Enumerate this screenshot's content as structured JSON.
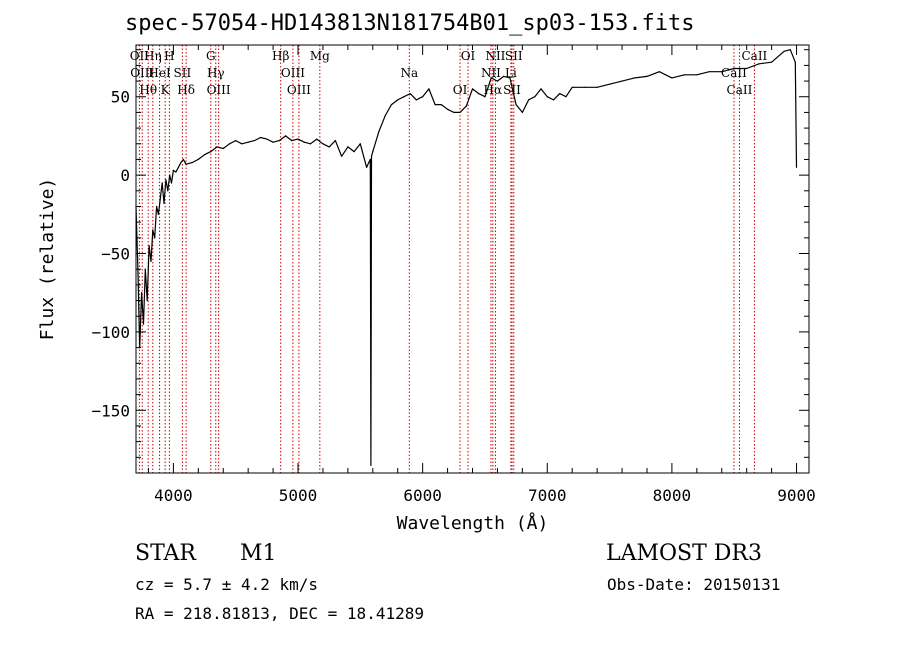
{
  "header": {
    "title": "spec-57054-HD143813N181754B01_sp03-153.fits"
  },
  "footer": {
    "object_class": "STAR",
    "subclass": "M1",
    "survey": "LAMOST DR3",
    "cz": "cz = 5.7 ± 4.2 km/s",
    "obs_date": "Obs-Date: 20150131",
    "coords": "RA = 218.81813, DEC =  18.41289"
  },
  "chart_data": {
    "type": "line",
    "title": "spec-57054-HD143813N181754B01_sp03-153.fits",
    "xlabel": "Wavelength (Å)",
    "ylabel": "Flux (relative)",
    "xlim": [
      3700,
      9100
    ],
    "ylim": [
      -190,
      83
    ],
    "xticks": [
      4000,
      5000,
      6000,
      7000,
      8000,
      9000
    ],
    "yticks": [
      -150,
      -100,
      -50,
      0,
      50
    ],
    "xtick_labels": [
      "4000",
      "5000",
      "6000",
      "7000",
      "8000",
      "9000"
    ],
    "ytick_labels": [
      "−150",
      "−100",
      "−50",
      "0",
      "50"
    ],
    "grid": false,
    "series": [
      {
        "name": "",
        "x": [
          3700,
          3715,
          3730,
          3745,
          3760,
          3775,
          3790,
          3805,
          3820,
          3835,
          3850,
          3865,
          3880,
          3895,
          3910,
          3925,
          3940,
          3955,
          3970,
          3985,
          4000,
          4020,
          4040,
          4060,
          4080,
          4100,
          4150,
          4200,
          4250,
          4300,
          4350,
          4400,
          4450,
          4500,
          4550,
          4600,
          4650,
          4700,
          4750,
          4800,
          4850,
          4900,
          4950,
          5000,
          5050,
          5100,
          5150,
          5200,
          5250,
          5300,
          5350,
          5400,
          5450,
          5500,
          5550,
          5580,
          5585,
          5590,
          5600,
          5650,
          5700,
          5750,
          5800,
          5850,
          5900,
          5950,
          6000,
          6050,
          6100,
          6150,
          6200,
          6250,
          6300,
          6350,
          6400,
          6450,
          6500,
          6550,
          6600,
          6650,
          6700,
          6750,
          6800,
          6850,
          6900,
          6950,
          7000,
          7050,
          7100,
          7150,
          7200,
          7300,
          7400,
          7500,
          7600,
          7700,
          7800,
          7900,
          8000,
          8100,
          8200,
          8300,
          8400,
          8500,
          8600,
          8700,
          8800,
          8900,
          8950,
          8990,
          9000
        ],
        "y": [
          -20,
          -60,
          -110,
          -75,
          -95,
          -60,
          -80,
          -45,
          -55,
          -35,
          -40,
          -20,
          -25,
          -15,
          -5,
          -18,
          -3,
          -10,
          0,
          -5,
          3,
          2,
          5,
          8,
          10,
          7,
          8,
          10,
          13,
          15,
          18,
          17,
          20,
          22,
          20,
          21,
          22,
          24,
          23,
          21,
          22,
          25,
          22,
          23,
          21,
          20,
          23,
          20,
          18,
          22,
          12,
          18,
          15,
          20,
          5,
          10,
          -185,
          12,
          15,
          28,
          38,
          45,
          48,
          50,
          52,
          48,
          50,
          55,
          45,
          45,
          42,
          40,
          40,
          44,
          55,
          52,
          50,
          62,
          60,
          63,
          62,
          45,
          40,
          48,
          50,
          55,
          50,
          48,
          52,
          50,
          56,
          56,
          56,
          58,
          60,
          62,
          63,
          66,
          62,
          64,
          64,
          66,
          66,
          68,
          68,
          71,
          72,
          79,
          80,
          72,
          5
        ]
      }
    ],
    "line_markers": [
      {
        "wavelength": 3727,
        "label": "OII"
      },
      {
        "wavelength": 3750,
        "label": "OIII"
      },
      {
        "wavelength": 3798,
        "label": "Hθ"
      },
      {
        "wavelength": 3835,
        "label": "Hη"
      },
      {
        "wavelength": 3889,
        "label": "HeI"
      },
      {
        "wavelength": 3934,
        "label": "K"
      },
      {
        "wavelength": 3968,
        "label": "H"
      },
      {
        "wavelength": 4072,
        "label": "SII"
      },
      {
        "wavelength": 4102,
        "label": "Hδ"
      },
      {
        "wavelength": 4300,
        "label": "G"
      },
      {
        "wavelength": 4340,
        "label": "Hγ"
      },
      {
        "wavelength": 4363,
        "label": "OIII"
      },
      {
        "wavelength": 4861,
        "label": "Hβ"
      },
      {
        "wavelength": 4959,
        "label": "OIII"
      },
      {
        "wavelength": 5007,
        "label": "OIII"
      },
      {
        "wavelength": 5175,
        "label": "Mg"
      },
      {
        "wavelength": 5893,
        "label": "Na"
      },
      {
        "wavelength": 6300,
        "label": "OI"
      },
      {
        "wavelength": 6364,
        "label": "OI"
      },
      {
        "wavelength": 6548,
        "label": "NII"
      },
      {
        "wavelength": 6563,
        "label": "Hα"
      },
      {
        "wavelength": 6584,
        "label": "NII"
      },
      {
        "wavelength": 6708,
        "label": "Li"
      },
      {
        "wavelength": 6717,
        "label": "SII"
      },
      {
        "wavelength": 6731,
        "label": "SII"
      },
      {
        "wavelength": 8498,
        "label": "CaII"
      },
      {
        "wavelength": 8542,
        "label": "CaII"
      },
      {
        "wavelength": 8662,
        "label": "CaII"
      }
    ],
    "line_color": "#000000",
    "marker_color": "#cc0000"
  }
}
